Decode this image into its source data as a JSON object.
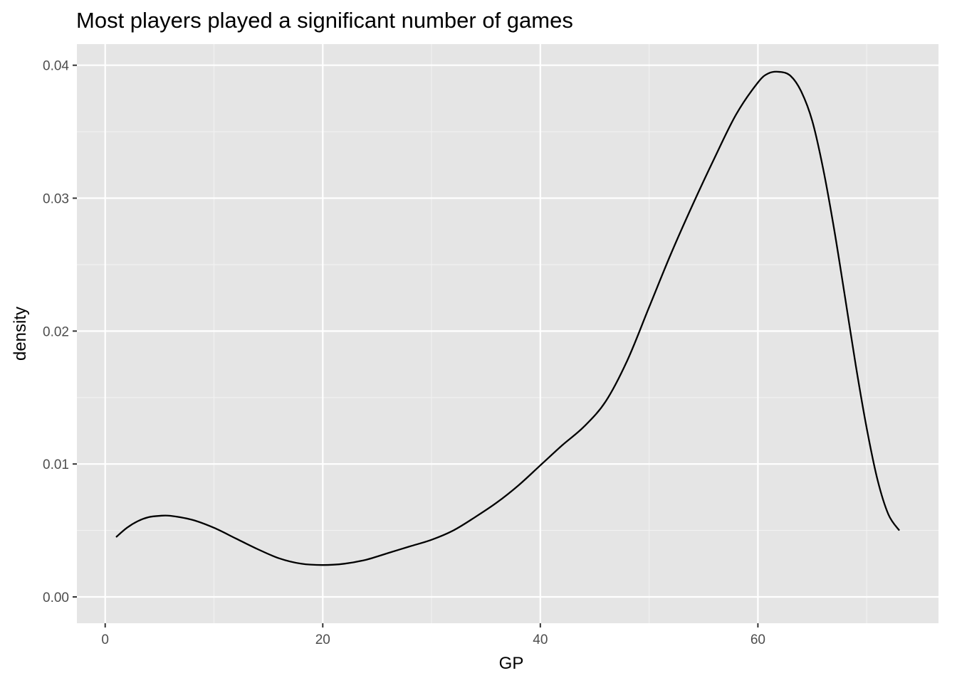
{
  "chart_data": {
    "type": "area",
    "geom": "density",
    "title": "Most players played a significant number of games",
    "xlabel": "GP",
    "ylabel": "density",
    "xlim": [
      -2.6,
      76.6
    ],
    "ylim": [
      -0.00198,
      0.04159
    ],
    "x_ticks": [
      0,
      20,
      40,
      60
    ],
    "x_tick_labels": [
      "0",
      "20",
      "40",
      "60"
    ],
    "y_ticks": [
      0.0,
      0.01,
      0.02,
      0.03,
      0.04
    ],
    "y_tick_labels": [
      "0.00",
      "0.01",
      "0.02",
      "0.03",
      "0.04"
    ],
    "grid": true,
    "legend": "none",
    "series": [
      {
        "x": [
          1,
          2,
          3,
          4,
          5,
          6,
          8,
          10,
          12,
          14,
          16,
          18,
          20,
          22,
          24,
          26,
          28,
          30,
          32,
          34,
          36,
          38,
          40,
          42,
          44,
          46,
          48,
          50,
          52,
          54,
          56,
          58,
          60,
          61,
          62,
          63,
          64,
          65,
          66,
          67,
          68,
          69,
          70,
          71,
          72,
          73
        ],
        "values": [
          0.0045,
          0.0052,
          0.0057,
          0.006,
          0.0061,
          0.0061,
          0.0058,
          0.0052,
          0.0044,
          0.0036,
          0.0029,
          0.0025,
          0.0024,
          0.0025,
          0.0028,
          0.0033,
          0.0038,
          0.0043,
          0.005,
          0.006,
          0.0071,
          0.0084,
          0.0099,
          0.0114,
          0.0128,
          0.0147,
          0.0178,
          0.0218,
          0.0258,
          0.0295,
          0.033,
          0.0363,
          0.0387,
          0.0394,
          0.0395,
          0.0392,
          0.038,
          0.0358,
          0.0322,
          0.0277,
          0.0226,
          0.0174,
          0.0127,
          0.0088,
          0.0062,
          0.005
        ]
      }
    ]
  },
  "colors": {
    "panel_background": "#e5e5e5",
    "grid_major": "#ffffff",
    "grid_minor": "#f2f2f2",
    "line": "#000000",
    "tick_text": "#4d4d4d"
  }
}
